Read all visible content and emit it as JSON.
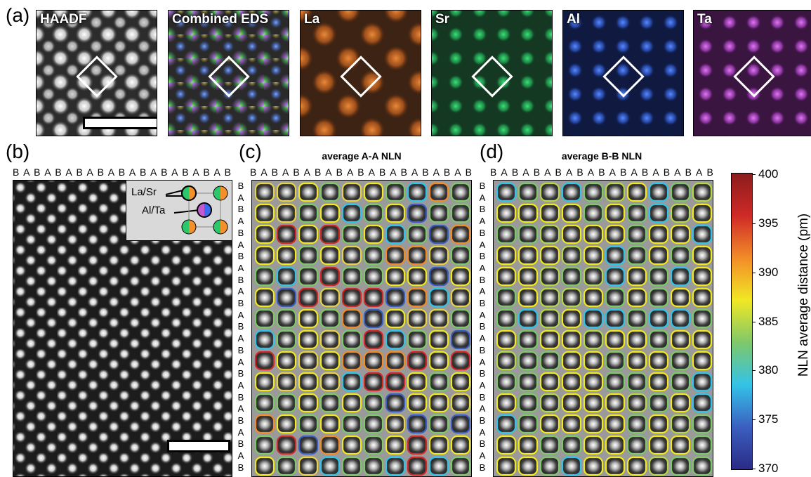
{
  "panel_a": {
    "label": "(a)",
    "tiles": [
      {
        "name": "HAADF",
        "label": "HAADF"
      },
      {
        "name": "Combined EDS",
        "label": "Combined EDS"
      },
      {
        "name": "La",
        "label": "La"
      },
      {
        "name": "Sr",
        "label": "Sr"
      },
      {
        "name": "Al",
        "label": "Al"
      },
      {
        "name": "Ta",
        "label": "Ta"
      }
    ],
    "colors": {
      "La": "#d2691e",
      "Sr": "#2cc76a",
      "Al": "#3a6cf2",
      "Ta": "#c45ad0",
      "eds_yellow": "#e6d34a",
      "eds_purple": "#a866e0"
    }
  },
  "panel_b": {
    "label": "(b)",
    "column_labels": "BABABABABABABABABABAB",
    "inset": {
      "site_a": "La/Sr",
      "site_b": "Al/Ta"
    }
  },
  "panel_c": {
    "label": "(c)",
    "title": "average A-A NLN",
    "column_labels": "BABABABABABABABABABAB",
    "row_labels": "BABABABABABABABABABABABAB"
  },
  "panel_d": {
    "label": "(d)",
    "title": "average B-B NLN",
    "column_labels": "BABABABABABABABABABAB",
    "row_labels": "BABABABABABABABABABABABAB"
  },
  "colorbar": {
    "title": "NLN average distance (pm)",
    "ticks": [
      "400",
      "395",
      "390",
      "385",
      "380",
      "375",
      "370"
    ],
    "min": 370,
    "max": 400,
    "colormap": [
      "#2b2a86",
      "#3b5fbf",
      "#33c3e8",
      "#7ec86a",
      "#f1e824",
      "#f28c28",
      "#cf2a27",
      "#8c1c1c"
    ]
  }
}
